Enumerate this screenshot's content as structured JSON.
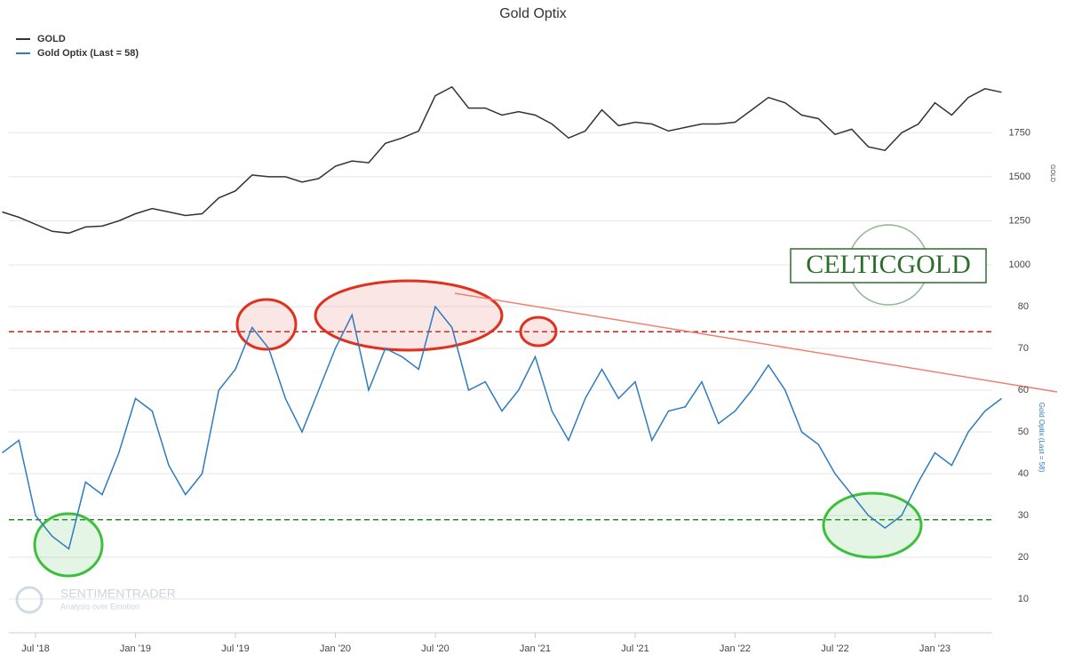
{
  "chart_data": {
    "type": "line",
    "title": "Gold Optix",
    "x": [
      "2018-05",
      "2018-06",
      "2018-07",
      "2018-08",
      "2018-09",
      "2018-10",
      "2018-11",
      "2018-12",
      "2019-01",
      "2019-02",
      "2019-03",
      "2019-04",
      "2019-05",
      "2019-06",
      "2019-07",
      "2019-08",
      "2019-09",
      "2019-10",
      "2019-11",
      "2019-12",
      "2020-01",
      "2020-02",
      "2020-03",
      "2020-04",
      "2020-05",
      "2020-06",
      "2020-07",
      "2020-08",
      "2020-09",
      "2020-10",
      "2020-11",
      "2020-12",
      "2021-01",
      "2021-02",
      "2021-03",
      "2021-04",
      "2021-05",
      "2021-06",
      "2021-07",
      "2021-08",
      "2021-09",
      "2021-10",
      "2021-11",
      "2021-12",
      "2022-01",
      "2022-02",
      "2022-03",
      "2022-04",
      "2022-05",
      "2022-06",
      "2022-07",
      "2022-08",
      "2022-09",
      "2022-10",
      "2022-11",
      "2022-12",
      "2023-01",
      "2023-02",
      "2023-03",
      "2023-04",
      "2023-05"
    ],
    "xticks": [
      {
        "value": "2018-07",
        "label": "Jul '18"
      },
      {
        "value": "2019-01",
        "label": "Jan '19"
      },
      {
        "value": "2019-07",
        "label": "Jul '19"
      },
      {
        "value": "2020-01",
        "label": "Jan '20"
      },
      {
        "value": "2020-07",
        "label": "Jul '20"
      },
      {
        "value": "2021-01",
        "label": "Jan '21"
      },
      {
        "value": "2021-07",
        "label": "Jul '21"
      },
      {
        "value": "2022-01",
        "label": "Jan '22"
      },
      {
        "value": "2022-07",
        "label": "Jul '22"
      },
      {
        "value": "2023-01",
        "label": "Jan '23"
      }
    ],
    "series": [
      {
        "name": "GOLD",
        "color": "#333333",
        "axis": "y",
        "values": [
          1300,
          1270,
          1230,
          1190,
          1180,
          1215,
          1220,
          1250,
          1290,
          1320,
          1300,
          1280,
          1290,
          1380,
          1420,
          1510,
          1500,
          1500,
          1470,
          1490,
          1560,
          1590,
          1580,
          1690,
          1720,
          1760,
          1960,
          2010,
          1890,
          1890,
          1850,
          1870,
          1850,
          1800,
          1720,
          1760,
          1880,
          1790,
          1810,
          1800,
          1760,
          1780,
          1800,
          1800,
          1810,
          1880,
          1950,
          1920,
          1850,
          1830,
          1740,
          1770,
          1670,
          1650,
          1750,
          1800,
          1920,
          1850,
          1950,
          2000,
          1980
        ]
      },
      {
        "name": "Gold Optix (Last = 58)",
        "color": "#2e7bbf",
        "axis": "y2",
        "values": [
          45,
          48,
          30,
          25,
          22,
          38,
          35,
          45,
          58,
          55,
          42,
          35,
          40,
          60,
          65,
          75,
          70,
          58,
          50,
          60,
          70,
          78,
          60,
          70,
          68,
          65,
          80,
          75,
          60,
          62,
          55,
          60,
          68,
          55,
          48,
          58,
          65,
          58,
          62,
          48,
          55,
          56,
          62,
          52,
          55,
          60,
          66,
          60,
          50,
          47,
          40,
          35,
          30,
          27,
          30,
          38,
          45,
          42,
          50,
          55,
          58
        ]
      }
    ],
    "ylim": [
      1000,
      2100
    ],
    "yticks": [
      1000,
      1250,
      1500,
      1750
    ],
    "ylabel": "GOLD",
    "y2lim": [
      0,
      90
    ],
    "y2ticks": [
      10,
      20,
      30,
      40,
      50,
      60,
      70,
      80
    ],
    "y2label": "Gold Optix (Last = 58)",
    "reference_lines": [
      {
        "value": 74,
        "color": "#c0201a"
      },
      {
        "value": 29,
        "color": "#1f8a1f"
      }
    ],
    "grid": true,
    "logo": "CELTICGOLD",
    "watermark": "SENTIMENTRADER",
    "watermark_tagline": "Analysis over Emotion"
  }
}
